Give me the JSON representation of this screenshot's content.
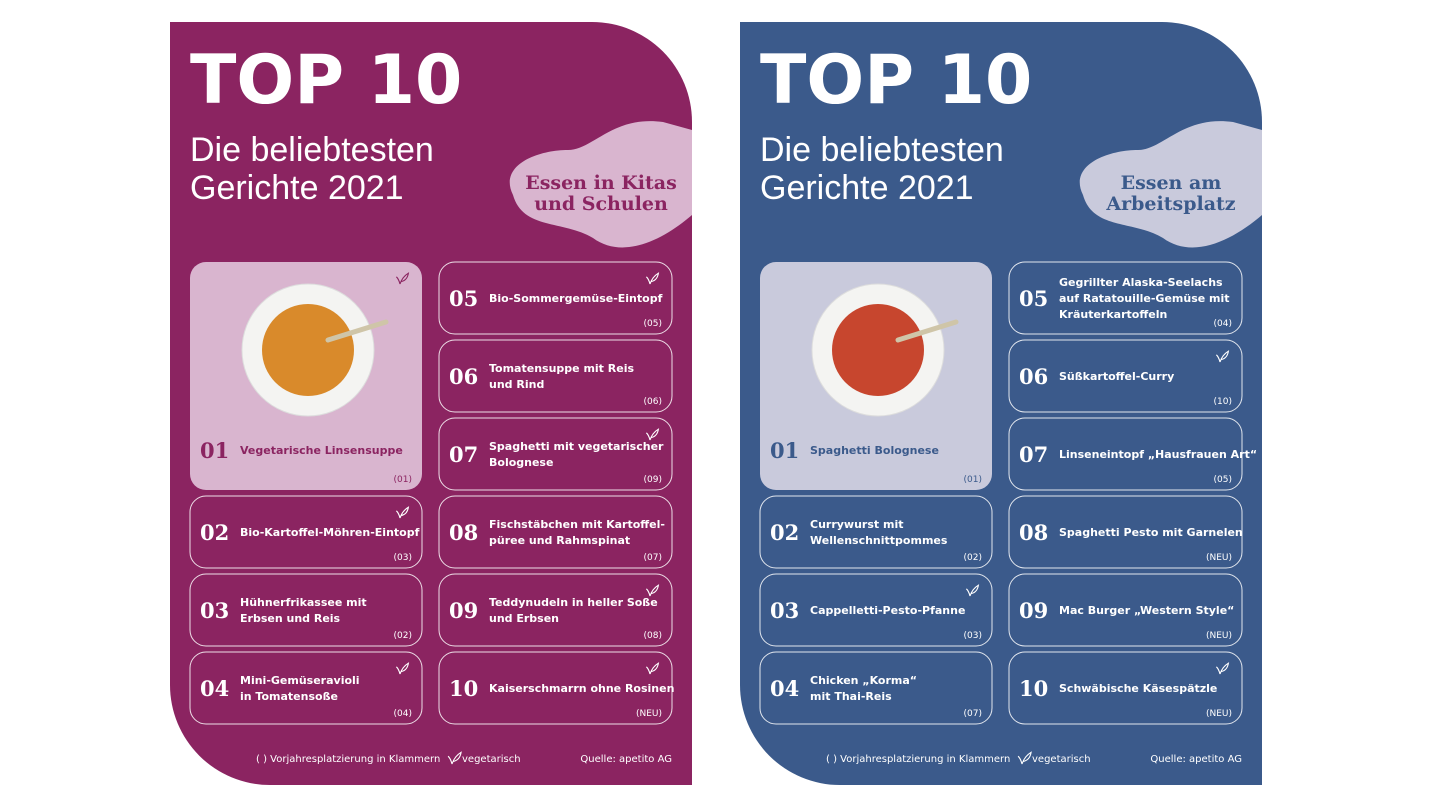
{
  "panels": [
    {
      "title": "TOP 10",
      "subtitle": [
        "Die beliebtesten",
        "Gerichte 2021"
      ],
      "badge": [
        "Essen in Kitas",
        "und Schulen"
      ],
      "color": "#8b2461",
      "light": "#d9b5cf",
      "items": [
        {
          "rank": "01",
          "name": [
            "Vegetarische Linsensuppe"
          ],
          "prev": "(01)",
          "veg": true
        },
        {
          "rank": "02",
          "name": [
            "Bio-Kartoffel-Möhren-Eintopf"
          ],
          "prev": "(03)",
          "veg": true
        },
        {
          "rank": "03",
          "name": [
            "Hühnerfrikassee mit",
            "Erbsen und Reis"
          ],
          "prev": "(02)",
          "veg": false
        },
        {
          "rank": "04",
          "name": [
            "Mini-Gemüseravioli",
            "in Tomatensoße"
          ],
          "prev": "(04)",
          "veg": true
        },
        {
          "rank": "05",
          "name": [
            "Bio-Sommergemüse-Eintopf"
          ],
          "prev": "(05)",
          "veg": true
        },
        {
          "rank": "06",
          "name": [
            "Tomatensuppe mit Reis",
            "und Rind"
          ],
          "prev": "(06)",
          "veg": false
        },
        {
          "rank": "07",
          "name": [
            "Spaghetti mit vegetarischer",
            "Bolognese"
          ],
          "prev": "(09)",
          "veg": true
        },
        {
          "rank": "08",
          "name": [
            "Fischstäbchen mit Kartoffel-",
            "püree und Rahmspinat"
          ],
          "prev": "(07)",
          "veg": false
        },
        {
          "rank": "09",
          "name": [
            "Teddynudeln in heller Soße",
            "und Erbsen"
          ],
          "prev": "(08)",
          "veg": true
        },
        {
          "rank": "10",
          "name": [
            "Kaiserschmarrn ohne Rosinen"
          ],
          "prev": "(NEU)",
          "veg": true
        }
      ],
      "footer": {
        "note": "( ) Vorjahresplatzierung in Klammern",
        "veg": "vegetarisch",
        "source": "Quelle: apetito AG"
      }
    },
    {
      "title": "TOP 10",
      "subtitle": [
        "Die beliebtesten",
        "Gerichte 2021"
      ],
      "badge": [
        "Essen am",
        "Arbeitsplatz"
      ],
      "color": "#3b5a8b",
      "light": "#c9cadc",
      "items": [
        {
          "rank": "01",
          "name": [
            "Spaghetti Bolognese"
          ],
          "prev": "(01)",
          "veg": false
        },
        {
          "rank": "02",
          "name": [
            "Currywurst mit",
            "Wellenschnittpommes"
          ],
          "prev": "(02)",
          "veg": false
        },
        {
          "rank": "03",
          "name": [
            "Cappelletti-Pesto-Pfanne"
          ],
          "prev": "(03)",
          "veg": true
        },
        {
          "rank": "04",
          "name": [
            "Chicken „Korma“",
            "mit Thai-Reis"
          ],
          "prev": "(07)",
          "veg": false
        },
        {
          "rank": "05",
          "name": [
            "Gegrillter Alaska-Seelachs",
            "auf Ratatouille-Gemüse mit",
            "Kräuterkartoffeln"
          ],
          "prev": "(04)",
          "veg": false
        },
        {
          "rank": "06",
          "name": [
            "Süßkartoffel-Curry"
          ],
          "prev": "(10)",
          "veg": true
        },
        {
          "rank": "07",
          "name": [
            "Linseneintopf „Hausfrauen Art“"
          ],
          "prev": "(05)",
          "veg": false
        },
        {
          "rank": "08",
          "name": [
            "Spaghetti Pesto mit Garnelen"
          ],
          "prev": "(NEU)",
          "veg": false
        },
        {
          "rank": "09",
          "name": [
            "Mac Burger „Western Style“"
          ],
          "prev": "(NEU)",
          "veg": false
        },
        {
          "rank": "10",
          "name": [
            "Schwäbische Käsespätzle"
          ],
          "prev": "(NEU)",
          "veg": true
        }
      ],
      "footer": {
        "note": "( ) Vorjahresplatzierung in Klammern",
        "veg": "vegetarisch",
        "source": "Quelle: apetito AG"
      }
    }
  ]
}
